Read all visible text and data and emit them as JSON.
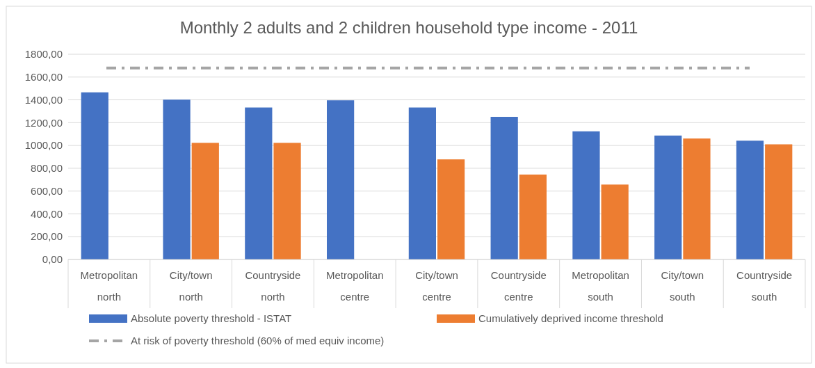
{
  "chart_data": {
    "type": "bar",
    "title": "Monthly 2 adults and 2 children household type income  - 2011",
    "categories": [
      "Metropolitan north",
      "City/town north",
      "Countryside north",
      "Metropolitan centre",
      "City/town centre",
      "Countryside centre",
      "Metropolitan south",
      "City/town south",
      "Countryside south"
    ],
    "series": [
      {
        "name": "Absolute poverty threshold - ISTAT",
        "color": "#4472c4",
        "values": [
          1466,
          1402,
          1333,
          1396,
          1333,
          1251,
          1124,
          1087,
          1042
        ]
      },
      {
        "name": "Cumulatively deprived income threshold",
        "color": "#ed7d31",
        "values": [
          null,
          1023,
          1023,
          null,
          878,
          745,
          657,
          1061,
          1010
        ]
      }
    ],
    "ref_lines": [
      {
        "axis": "y",
        "value": 1680,
        "label": "At risk of poverty threshold (60% of med equiv income)",
        "color": "#a5a5a5",
        "line_style": "dashed"
      }
    ],
    "ylim": [
      0,
      1800
    ],
    "yticks": [
      {
        "value": 0,
        "label": "0,00"
      },
      {
        "value": 200,
        "label": "200,00"
      },
      {
        "value": 400,
        "label": "400,00"
      },
      {
        "value": 600,
        "label": "600,00"
      },
      {
        "value": 800,
        "label": "800,00"
      },
      {
        "value": 1000,
        "label": "1000,00"
      },
      {
        "value": 1200,
        "label": "1200,00"
      },
      {
        "value": 1400,
        "label": "1400,00"
      },
      {
        "value": 1600,
        "label": "1600,00"
      },
      {
        "value": 1800,
        "label": "1800,00"
      }
    ],
    "grid": "y",
    "legend": "bottom"
  }
}
